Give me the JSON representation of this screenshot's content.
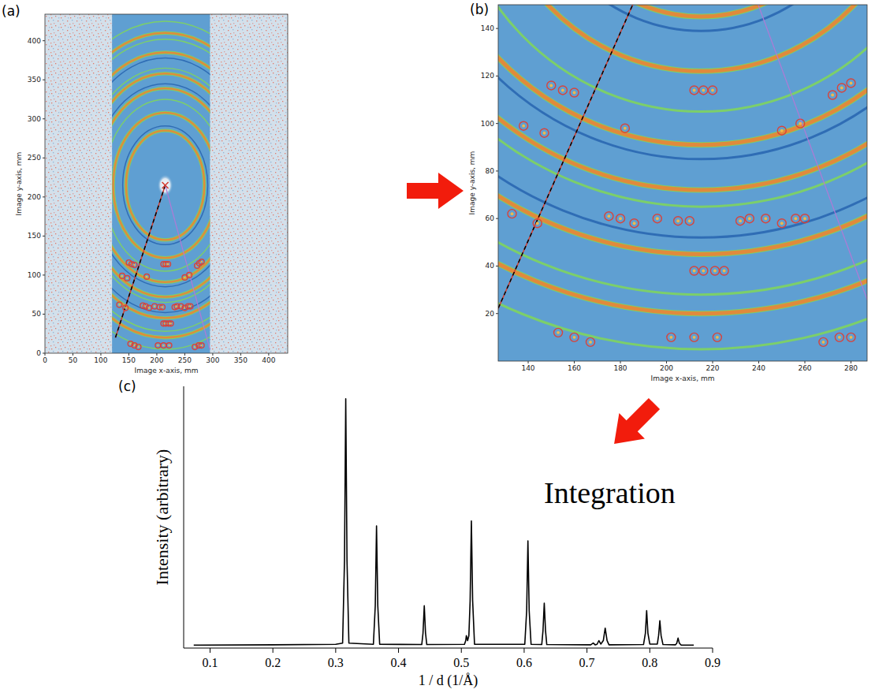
{
  "chart_data": [
    {
      "type": "image",
      "title": "(a)",
      "x_label": "Image x-axis, mm",
      "y_label": "Image y-axis, mm",
      "xlim": [
        0,
        434
      ],
      "ylim": [
        0,
        434
      ],
      "xticks": [
        0,
        50,
        100,
        150,
        200,
        250,
        300,
        350,
        400
      ],
      "yticks": [
        0,
        50,
        100,
        150,
        200,
        250,
        300,
        350,
        400
      ],
      "active_region_x": [
        120,
        295
      ],
      "center": [
        215,
        215
      ],
      "rings": {
        "radii": [
          70,
          76,
          93,
          110,
          124,
          130,
          143,
          150,
          163,
          170,
          187,
          195,
          210
        ],
        "colors": [
          "#e08a3c",
          "#2f6db5",
          "#e08a3c",
          "#7ccf6a",
          "#e08a3c",
          "#2f6db5",
          "#e08a3c",
          "#7ccf6a",
          "#2f6db5",
          "#e08a3c",
          "#7ccf6a",
          "#e08a3c",
          "#7ccf6a"
        ]
      },
      "spots": {
        "x": [
          212,
          216,
          220,
          182,
          150,
          155,
          160,
          272,
          276,
          280,
          138,
          147,
          133,
          144,
          175,
          180,
          186,
          196,
          205,
          210,
          232,
          236,
          243,
          250,
          256,
          260,
          250,
          258,
          212,
          216,
          221,
          225,
          202,
          212,
          222,
          153,
          160,
          167,
          268,
          275,
          280
        ],
        "y": [
          114,
          114,
          114,
          98,
          116,
          114,
          113,
          112,
          115,
          117,
          99,
          96,
          62,
          58,
          61,
          60,
          58,
          60,
          59,
          59,
          59,
          60,
          60,
          58,
          60,
          60,
          97,
          100,
          38,
          38,
          38,
          38,
          10,
          10,
          10,
          12,
          10,
          8,
          8,
          10,
          10
        ]
      },
      "lines": [
        {
          "x": [
            215,
            126
          ],
          "y": [
            215,
            20
          ],
          "color": "#000000",
          "line_style": "dashed"
        },
        {
          "x": [
            215,
            295
          ],
          "y": [
            215,
            5
          ],
          "color": "#b07ad6",
          "line_style": "solid"
        }
      ]
    },
    {
      "type": "image",
      "title": "(b)",
      "x_label": "Image x-axis, mm",
      "y_label": "Image y-axis, mm",
      "xlim": [
        127,
        287
      ],
      "ylim": [
        0,
        150
      ],
      "xticks": [
        140,
        160,
        180,
        200,
        220,
        240,
        260,
        280
      ],
      "yticks": [
        20,
        40,
        60,
        80,
        100,
        120,
        140
      ],
      "active_region_x": [
        120,
        295
      ],
      "center": [
        215,
        215
      ],
      "rings": {
        "radii": [
          70,
          76,
          93,
          110,
          124,
          130,
          143,
          150,
          163,
          170,
          187,
          195,
          210
        ],
        "colors": [
          "#e08a3c",
          "#2f6db5",
          "#e08a3c",
          "#7ccf6a",
          "#e08a3c",
          "#2f6db5",
          "#e08a3c",
          "#7ccf6a",
          "#2f6db5",
          "#e08a3c",
          "#7ccf6a",
          "#e08a3c",
          "#7ccf6a"
        ]
      },
      "spots": {
        "x": [
          212,
          216,
          220,
          182,
          150,
          155,
          160,
          272,
          276,
          280,
          138,
          147,
          133,
          144,
          175,
          180,
          186,
          196,
          205,
          210,
          232,
          236,
          243,
          250,
          256,
          260,
          250,
          258,
          212,
          216,
          221,
          225,
          202,
          212,
          222,
          153,
          160,
          167,
          268,
          275,
          280
        ],
        "y": [
          114,
          114,
          114,
          98,
          116,
          114,
          113,
          112,
          115,
          117,
          99,
          96,
          62,
          58,
          61,
          60,
          58,
          60,
          59,
          59,
          59,
          60,
          60,
          58,
          60,
          60,
          97,
          100,
          38,
          38,
          38,
          38,
          10,
          10,
          10,
          12,
          10,
          8,
          8,
          10,
          10
        ]
      },
      "lines": [
        {
          "x": [
            215,
            126
          ],
          "y": [
            215,
            20
          ],
          "color": "#000000",
          "line_style": "dashed"
        },
        {
          "x": [
            215,
            295
          ],
          "y": [
            215,
            5
          ],
          "color": "#b07ad6",
          "line_style": "solid"
        }
      ]
    },
    {
      "type": "line",
      "title": "(c)",
      "x_label": "1 / d (1/Å)",
      "y_label": "Intensity (arbitrary)",
      "annotations": [
        "Integration"
      ],
      "xlim": [
        0.058,
        0.9
      ],
      "ylim": [
        0,
        1.05
      ],
      "xticks": [
        0.1,
        0.2,
        0.3,
        0.4,
        0.5,
        0.6,
        0.7,
        0.8,
        0.9
      ],
      "tick_labels": "x",
      "color": "#000000",
      "x": [
        0.074,
        0.2,
        0.3,
        0.311,
        0.314,
        0.316,
        0.318,
        0.321,
        0.36,
        0.363,
        0.365,
        0.367,
        0.37,
        0.437,
        0.439,
        0.441,
        0.443,
        0.445,
        0.505,
        0.507,
        0.508,
        0.51,
        0.512,
        0.514,
        0.516,
        0.518,
        0.521,
        0.601,
        0.604,
        0.606,
        0.608,
        0.611,
        0.628,
        0.63,
        0.632,
        0.634,
        0.636,
        0.706,
        0.71,
        0.713,
        0.716,
        0.719,
        0.722,
        0.726,
        0.729,
        0.732,
        0.735,
        0.79,
        0.793,
        0.795,
        0.797,
        0.8,
        0.812,
        0.814,
        0.816,
        0.818,
        0.821,
        0.841,
        0.843,
        0.845,
        0.847,
        0.85,
        0.87
      ],
      "values": [
        0.012,
        0.013,
        0.015,
        0.02,
        0.35,
        1.0,
        0.35,
        0.02,
        0.015,
        0.17,
        0.49,
        0.17,
        0.015,
        0.014,
        0.06,
        0.17,
        0.06,
        0.014,
        0.015,
        0.03,
        0.05,
        0.03,
        0.05,
        0.19,
        0.51,
        0.19,
        0.015,
        0.015,
        0.15,
        0.43,
        0.15,
        0.015,
        0.014,
        0.07,
        0.18,
        0.07,
        0.014,
        0.013,
        0.02,
        0.013,
        0.015,
        0.03,
        0.016,
        0.03,
        0.08,
        0.03,
        0.013,
        0.014,
        0.06,
        0.15,
        0.06,
        0.016,
        0.016,
        0.05,
        0.11,
        0.05,
        0.014,
        0.013,
        0.02,
        0.04,
        0.02,
        0.012,
        0.012
      ]
    }
  ]
}
